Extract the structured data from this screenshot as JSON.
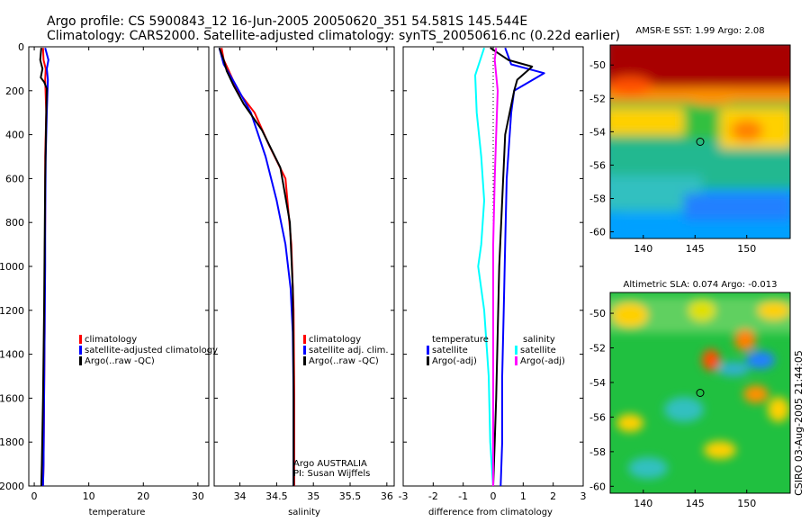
{
  "header": {
    "line1": "Argo profile: CS 5900843_12 16-Jun-2005 20050620_351 54.581S 145.544E",
    "line2": "Climatology: CARS2000. Satellite-adjusted climatology: synTS_20050616.nc (0.22d earlier)"
  },
  "colors": {
    "climatology": "#ff0000",
    "satellite": "#0000ff",
    "argo": "#000000",
    "salinity_sat": "#00ffff",
    "salinity_argo": "#ff00ff"
  },
  "chart_data": [
    {
      "type": "line",
      "name": "temperature",
      "xlabel": "temperature",
      "ylabel": "",
      "xlim": [
        -1,
        32
      ],
      "ylim": [
        2000,
        0
      ],
      "xticks": [
        "0",
        "10",
        "20",
        "30"
      ],
      "yticks": [
        "0",
        "200",
        "400",
        "600",
        "800",
        "1000",
        "1200",
        "1400",
        "1600",
        "1800",
        "2000"
      ],
      "legend": [
        "climatology",
        "satellite-adjusted climatology",
        "Argo(..raw -QC)"
      ],
      "legend_position": "center-right",
      "series": [
        {
          "name": "climatology",
          "color": "#ff0000",
          "x": [
            1.6,
            1.7,
            2.1,
            2.0,
            2.2,
            2.0,
            2.0,
            1.9,
            1.9,
            1.8,
            1.7,
            1.6
          ],
          "y": [
            5,
            60,
            100,
            150,
            300,
            500,
            800,
            1000,
            1300,
            1600,
            1900,
            2000
          ]
        },
        {
          "name": "satellite-adjusted climatology",
          "color": "#0000ff",
          "x": [
            2.0,
            2.6,
            2.3,
            2.5,
            2.3,
            2.1,
            2.0,
            2.0,
            1.9,
            1.8,
            1.7,
            1.6
          ],
          "y": [
            5,
            60,
            100,
            150,
            300,
            500,
            800,
            1000,
            1300,
            1600,
            1900,
            2000
          ]
        },
        {
          "name": "Argo(..raw -QC)",
          "color": "#000000",
          "x": [
            1.3,
            1.1,
            1.5,
            1.2,
            1.8,
            2.3,
            2.2,
            2.0,
            1.9,
            1.8,
            1.6,
            1.4,
            1.3
          ],
          "y": [
            5,
            60,
            100,
            140,
            160,
            190,
            300,
            600,
            900,
            1200,
            1600,
            1900,
            2000
          ]
        }
      ]
    },
    {
      "type": "line",
      "name": "salinity",
      "xlabel": "salinity",
      "ylabel": "",
      "xlim": [
        33.65,
        36.1
      ],
      "ylim": [
        2000,
        0
      ],
      "xticks": [
        "34",
        "34.5",
        "35",
        "35.5",
        "36"
      ],
      "legend": [
        "climatology",
        "satellite adj. clim.",
        "Argo(..raw -QC)"
      ],
      "legend_position": "center-right",
      "annotations": [
        "Argo AUSTRALIA",
        "PI: Susan Wijffels"
      ],
      "series": [
        {
          "name": "climatology",
          "color": "#ff0000",
          "x": [
            33.75,
            33.78,
            33.85,
            33.97,
            34.2,
            34.4,
            34.62,
            34.7,
            34.73,
            34.74,
            34.74
          ],
          "y": [
            5,
            60,
            110,
            200,
            300,
            450,
            600,
            900,
            1200,
            1600,
            2000
          ]
        },
        {
          "name": "satellite adj. clim.",
          "color": "#0000ff",
          "x": [
            33.72,
            33.78,
            33.92,
            34.15,
            34.35,
            34.5,
            34.62,
            34.69,
            34.72,
            34.73,
            34.73
          ],
          "y": [
            5,
            80,
            160,
            300,
            500,
            700,
            900,
            1100,
            1300,
            1600,
            2000
          ]
        },
        {
          "name": "Argo(..raw -QC)",
          "color": "#000000",
          "x": [
            33.72,
            33.78,
            33.82,
            33.92,
            34.05,
            34.3,
            34.55,
            34.68,
            34.72,
            34.73,
            34.73
          ],
          "y": [
            5,
            60,
            110,
            180,
            260,
            380,
            550,
            800,
            1100,
            1500,
            2000
          ]
        }
      ]
    },
    {
      "type": "line",
      "name": "difference",
      "xlabel": "difference from climatology",
      "ylabel": "",
      "xlim": [
        -3,
        3
      ],
      "ylim": [
        2000,
        0
      ],
      "xticks": [
        "-3",
        "-2",
        "-1",
        "0",
        "1",
        "2",
        "3"
      ],
      "legend_left": [
        "temperature",
        "satellite",
        "Argo(-adj)"
      ],
      "legend_right": [
        "salinity",
        "satellite",
        "Argo(-adj)"
      ],
      "legend_position": "center",
      "series": [
        {
          "name": "temperature satellite",
          "color": "#0000ff",
          "x": [
            0.4,
            0.6,
            1.7,
            0.7,
            0.6,
            0.45,
            0.4,
            0.35,
            0.3,
            0.3,
            0.25
          ],
          "y": [
            5,
            80,
            120,
            200,
            300,
            600,
            900,
            1200,
            1500,
            1800,
            2000
          ]
        },
        {
          "name": "temperature Argo(-adj)",
          "color": "#000000",
          "x": [
            -0.1,
            0.5,
            1.3,
            0.8,
            0.7,
            0.4,
            0.3,
            0.2,
            0.15,
            0.1,
            0.05,
            0.0
          ],
          "y": [
            5,
            60,
            90,
            150,
            200,
            400,
            700,
            1000,
            1300,
            1600,
            1800,
            2000
          ]
        },
        {
          "name": "salinity satellite",
          "color": "#00ffff",
          "x": [
            -0.3,
            -0.6,
            -0.55,
            -0.4,
            -0.3,
            -0.4,
            -0.5,
            -0.3,
            -0.15,
            -0.1,
            0.0
          ],
          "y": [
            5,
            130,
            300,
            500,
            700,
            900,
            1000,
            1200,
            1500,
            1800,
            2000
          ]
        },
        {
          "name": "salinity Argo(-adj)",
          "color": "#ff00ff",
          "x": [
            0.1,
            0.05,
            0.15,
            0.1,
            0.05,
            0.0,
            0.0,
            0.0,
            0.0,
            0.0
          ],
          "y": [
            5,
            60,
            200,
            400,
            600,
            900,
            1200,
            1500,
            1800,
            2000
          ]
        }
      ]
    },
    {
      "type": "heatmap",
      "name": "sst-map",
      "title": "AMSR-E SST: 1.99 Argo: 2.08",
      "xticks": [
        "140",
        "145",
        "150"
      ],
      "yticks": [
        "-50",
        "-52",
        "-54",
        "-56",
        "-58",
        "-60"
      ],
      "xlim": [
        136.8,
        154.2
      ],
      "ylim": [
        -60.4,
        -48.8
      ],
      "marker": {
        "lon": 145.5,
        "lat": -54.6
      }
    },
    {
      "type": "heatmap",
      "name": "sla-map",
      "title": "Altimetric SLA: 0.074 Argo: -0.013",
      "xticks": [
        "140",
        "145",
        "150"
      ],
      "yticks": [
        "-50",
        "-52",
        "-54",
        "-56",
        "-58",
        "-60"
      ],
      "xlim": [
        136.8,
        154.2
      ],
      "ylim": [
        -60.4,
        -48.8
      ],
      "marker": {
        "lon": 145.5,
        "lat": -54.6
      }
    }
  ],
  "footer": {
    "stamp": "CSIRO 03-Aug-2005 21:44:05"
  }
}
